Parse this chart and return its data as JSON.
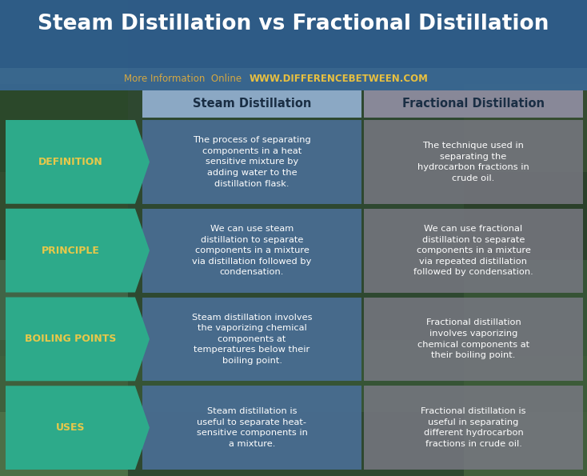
{
  "title": "Steam Distillation vs Fractional Distillation",
  "subtitle_normal": "More Information  Online  ",
  "subtitle_url": "WWW.DIFFERENCEBETWEEN.COM",
  "row_labels": [
    "DEFINITION",
    "PRINCIPLE",
    "BOILING POINTS",
    "USES"
  ],
  "steam_texts": [
    "The process of separating\ncomponents in a heat\nsensitive mixture by\nadding water to the\ndistillation flask.",
    "We can use steam\ndistillation to separate\ncomponents in a mixture\nvia distillation followed by\ncondensation.",
    "Steam distillation involves\nthe vaporizing chemical\ncomponents at\ntemperatures below their\nboiling point.",
    "Steam distillation is\nuseful to separate heat-\nsensitive components in\na mixture."
  ],
  "frac_texts": [
    "The technique used in\nseparating the\nhydrocarbon fractions in\ncrude oil.",
    "We can use fractional\ndistillation to separate\ncomponents in a mixture\nvia repeated distillation\nfollowed by condensation.",
    "Fractional distillation\ninvolves vaporizing\nchemical components at\ntheir boiling point.",
    "Fractional distillation is\nuseful in separating\ndifferent hydrocarbon\nfractions in crude oil."
  ],
  "col_headers": [
    "Steam Distillation",
    "Fractional Distillation"
  ],
  "title_bg": "#2E5D8E",
  "subtitle_bar_bg": "#3A6B9E",
  "header_steam_color": "#8BA8C4",
  "header_frac_color": "#888898",
  "steam_col_color": "#4A6E96",
  "frac_col_color": "#787882",
  "label_arrow_color": "#2DAA8A",
  "label_text_color": "#E8C84A",
  "header_text_color": "#1A2E44",
  "body_text_color": "#FFFFFF",
  "bg_top_color": "#3A5A3A",
  "bg_mid_color": "#2A4A2A",
  "bg_bot_color": "#4A7A3A",
  "fig_w": 7.34,
  "fig_h": 5.95,
  "dpi": 100
}
